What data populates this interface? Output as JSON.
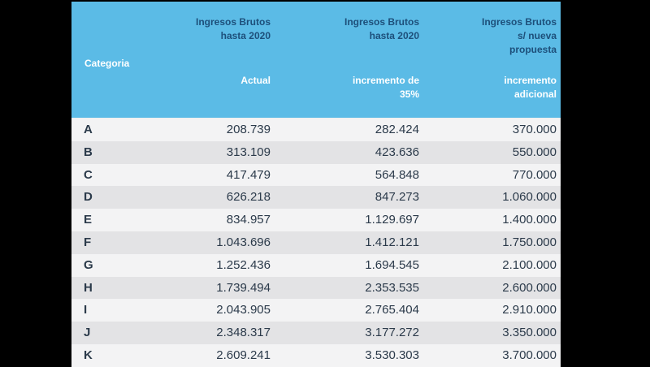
{
  "header": {
    "categoria": "Categoria",
    "col1_title": [
      "Ingresos Brutos",
      "hasta 2020"
    ],
    "col1_sub": [
      "Actual"
    ],
    "col2_title": [
      "Ingresos Brutos",
      "hasta 2020"
    ],
    "col2_sub": [
      "incremento de",
      "35%"
    ],
    "col3_title": [
      "Ingresos Brutos",
      "s/ nueva",
      "propuesta"
    ],
    "col3_sub": [
      "incremento",
      "adicional"
    ]
  },
  "rows": [
    [
      "A",
      "208.739",
      "282.424",
      "370.000"
    ],
    [
      "B",
      "313.109",
      "423.636",
      "550.000"
    ],
    [
      "C",
      "417.479",
      "564.848",
      "770.000"
    ],
    [
      "D",
      "626.218",
      "847.273",
      "1.060.000"
    ],
    [
      "E",
      "834.957",
      "1.129.697",
      "1.400.000"
    ],
    [
      "F",
      "1.043.696",
      "1.412.121",
      "1.750.000"
    ],
    [
      "G",
      "1.252.436",
      "1.694.545",
      "2.100.000"
    ],
    [
      "H",
      "1.739.494",
      "2.353.535",
      "2.600.000"
    ],
    [
      "I",
      "2.043.905",
      "2.765.404",
      "2.910.000"
    ],
    [
      "J",
      "2.348.317",
      "3.177.272",
      "3.350.000"
    ],
    [
      "K",
      "2.609.241",
      "3.530.303",
      "3.700.000"
    ]
  ]
}
